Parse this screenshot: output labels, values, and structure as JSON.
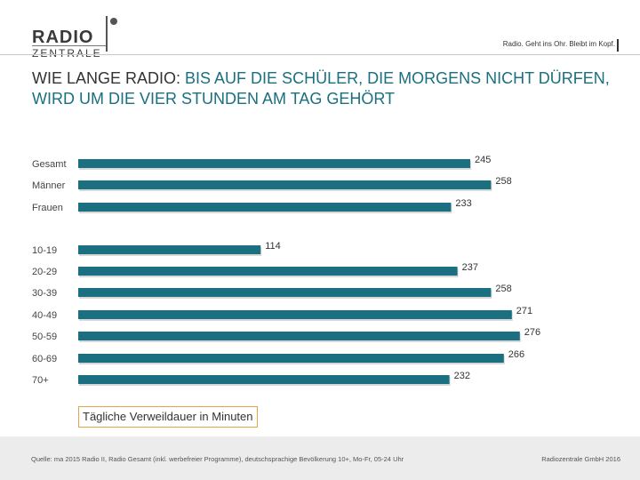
{
  "header": {
    "logo_top": "RADIO",
    "logo_bottom": "ZENTRALE",
    "tagline": "Radio. Geht ins Ohr. Bleibt im Kopf."
  },
  "title": {
    "part1": "WIE LANGE RADIO: ",
    "part2": "BIS AUF DIE SCHÜLER, DIE MORGENS NICHT DÜRFEN, WIRD UM DIE VIER STUNDEN AM TAG GEHÖRT"
  },
  "chart_data": {
    "type": "bar",
    "orientation": "horizontal",
    "categories": [
      "Gesamt",
      "Männer",
      "Frauen",
      "10-19",
      "20-29",
      "30-39",
      "40-49",
      "50-59",
      "60-69",
      "70+"
    ],
    "values": [
      245,
      258,
      233,
      114,
      237,
      258,
      271,
      276,
      266,
      232
    ],
    "xlabel": "Tägliche Verweildauer in Minuten",
    "bar_color": "#1a6f80",
    "legend": "none"
  },
  "footer": {
    "source": "Quelle: ma 2015 Radio II, Radio Gesamt (inkl. werbefreier Programme), deutschsprachige Bevölkerung 10+, Mo-Fr, 05-24 Uhr",
    "copyright": "Radiozentrale GmbH 2016"
  }
}
